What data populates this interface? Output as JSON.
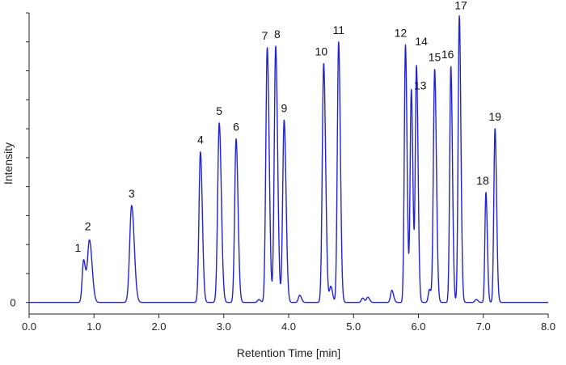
{
  "chart_data": {
    "type": "line",
    "title": "",
    "xlabel": "Retention Time [min]",
    "ylabel": "Intensity",
    "xlim": [
      0,
      8
    ],
    "ylim": [
      -4,
      100
    ],
    "x_ticks": [
      0,
      1,
      2,
      3,
      4,
      5,
      6,
      7,
      8
    ],
    "x_tick_labels": [
      "0.0",
      "1.0",
      "2.0",
      "3.0",
      "4.0",
      "5.0",
      "6.0",
      "7.0",
      "8.0"
    ],
    "y_tick_labels": [
      {
        "value": 0,
        "label": "0"
      }
    ],
    "y_minor_ticks": [
      0,
      10,
      20,
      30,
      40,
      50,
      60,
      70,
      80,
      90,
      100
    ],
    "grid": false,
    "legend": null,
    "baseline": 0,
    "series": [
      {
        "color": "#2323d6",
        "peaks": [
          {
            "label": "1",
            "x": 0.84,
            "y": 14.5,
            "w": 0.022
          },
          {
            "label": "2",
            "x": 0.93,
            "y": 21.5,
            "w": 0.03
          },
          {
            "label": "3",
            "x": 1.58,
            "y": 33.5,
            "w": 0.03
          },
          {
            "label": "4",
            "x": 2.64,
            "y": 52.0,
            "w": 0.022
          },
          {
            "label": "5",
            "x": 2.93,
            "y": 62.0,
            "w": 0.024
          },
          {
            "label": "6",
            "x": 3.19,
            "y": 56.5,
            "w": 0.022
          },
          {
            "label": "7",
            "x": 3.67,
            "y": 88.0,
            "w": 0.022
          },
          {
            "label": "8",
            "x": 3.8,
            "y": 88.5,
            "w": 0.022
          },
          {
            "label": "9",
            "x": 3.93,
            "y": 63.0,
            "w": 0.022
          },
          {
            "label": "10",
            "x": 4.54,
            "y": 82.5,
            "w": 0.022
          },
          {
            "label": "11",
            "x": 4.77,
            "y": 90.0,
            "w": 0.02
          },
          {
            "label": "12",
            "x": 5.8,
            "y": 89.0,
            "w": 0.018
          },
          {
            "label": "13",
            "x": 5.89,
            "y": 73.5,
            "w": 0.018
          },
          {
            "label": "14",
            "x": 5.97,
            "y": 81.5,
            "w": 0.018
          },
          {
            "label": "15",
            "x": 6.25,
            "y": 80.5,
            "w": 0.02
          },
          {
            "label": "16",
            "x": 6.5,
            "y": 81.5,
            "w": 0.018
          },
          {
            "label": "17",
            "x": 6.63,
            "y": 99.0,
            "w": 0.018
          },
          {
            "label": "18",
            "x": 7.04,
            "y": 38.0,
            "w": 0.016
          },
          {
            "label": "19",
            "x": 7.18,
            "y": 60.0,
            "w": 0.018
          }
        ],
        "minor_peaks": [
          {
            "x": 3.54,
            "y": 1.0,
            "w": 0.02
          },
          {
            "x": 4.17,
            "y": 2.5,
            "w": 0.02
          },
          {
            "x": 4.65,
            "y": 5.5,
            "w": 0.02
          },
          {
            "x": 5.14,
            "y": 1.5,
            "w": 0.02
          },
          {
            "x": 5.22,
            "y": 1.8,
            "w": 0.02
          },
          {
            "x": 5.59,
            "y": 4.2,
            "w": 0.02
          },
          {
            "x": 6.17,
            "y": 4.5,
            "w": 0.018
          },
          {
            "x": 6.89,
            "y": 1.0,
            "w": 0.02
          }
        ]
      }
    ]
  }
}
